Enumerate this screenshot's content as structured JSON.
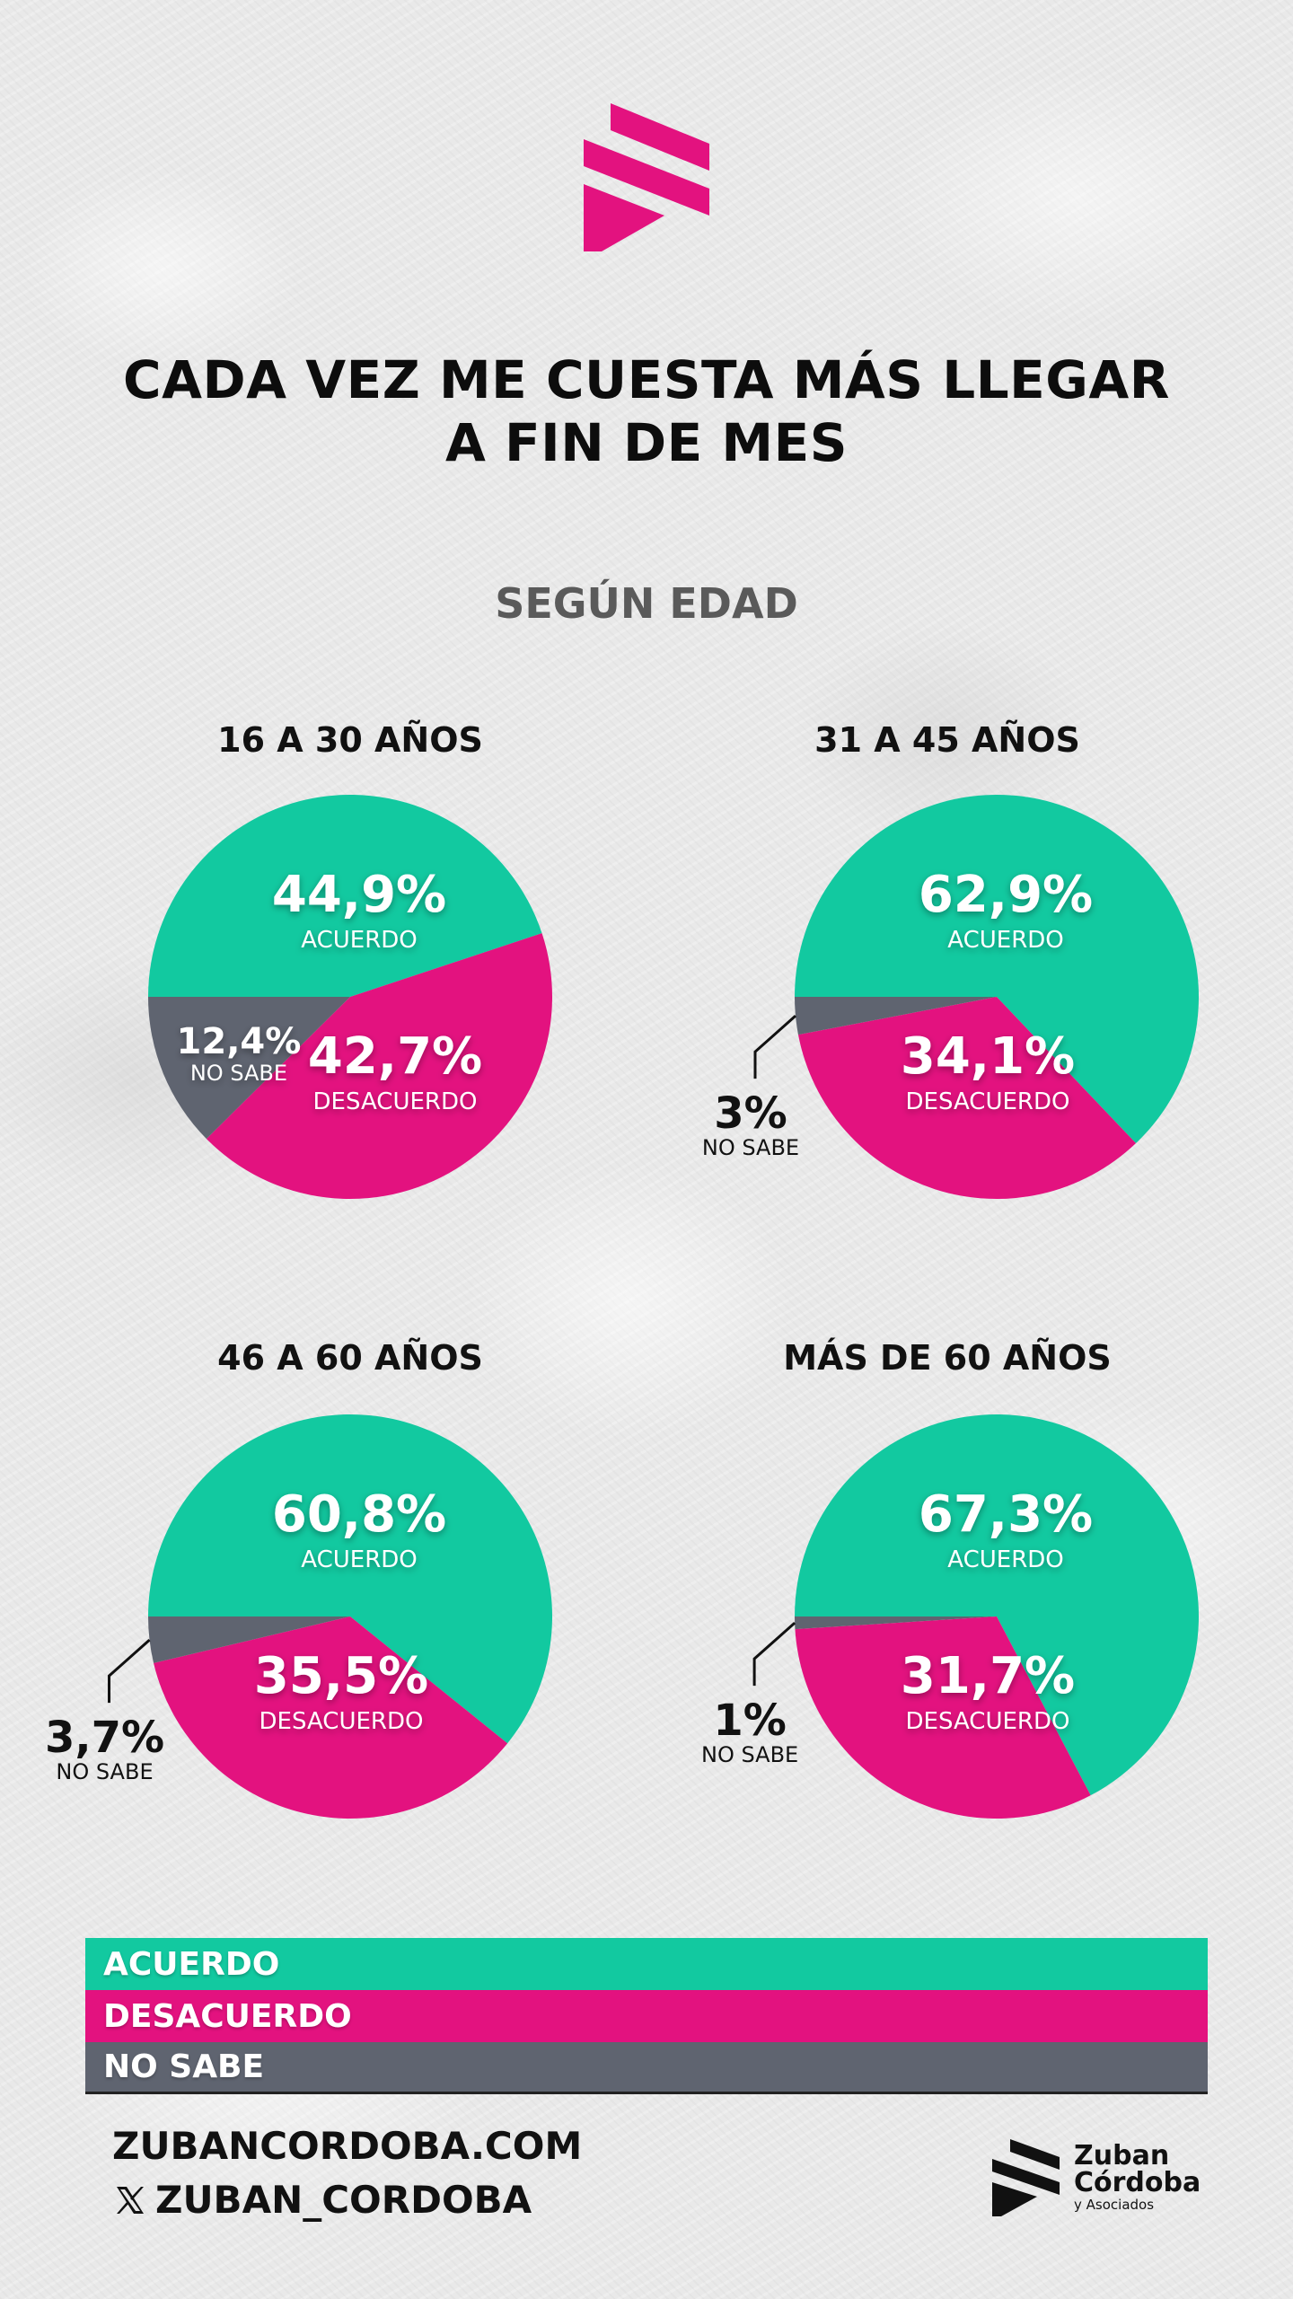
{
  "title_lines": [
    "CADA VEZ ME CUESTA MÁS LLEGAR",
    "A FIN DE MES"
  ],
  "subtitle": "SEGÚN EDAD",
  "colors": {
    "acuerdo": "#12c9a0",
    "desacuerdo": "#e3127f",
    "no_sabe": "#5f6470",
    "brand_pink": "#e3127f"
  },
  "chart_data": [
    {
      "type": "pie",
      "title": "16 A 30 AÑOS",
      "slices": [
        {
          "label": "ACUERDO",
          "value": 44.9,
          "display": "44,9%"
        },
        {
          "label": "DESACUERDO",
          "value": 42.7,
          "display": "42,7%"
        },
        {
          "label": "NO SABE",
          "value": 12.4,
          "display": "12,4%"
        }
      ]
    },
    {
      "type": "pie",
      "title": "31 A 45 AÑOS",
      "slices": [
        {
          "label": "ACUERDO",
          "value": 62.9,
          "display": "62,9%"
        },
        {
          "label": "DESACUERDO",
          "value": 34.1,
          "display": "34,1%"
        },
        {
          "label": "NO SABE",
          "value": 3,
          "display": "3%"
        }
      ]
    },
    {
      "type": "pie",
      "title": "46 A 60 AÑOS",
      "slices": [
        {
          "label": "ACUERDO",
          "value": 60.8,
          "display": "60,8%"
        },
        {
          "label": "DESACUERDO",
          "value": 35.5,
          "display": "35,5%"
        },
        {
          "label": "NO SABE",
          "value": 3.7,
          "display": "3,7%"
        }
      ]
    },
    {
      "type": "pie",
      "title": "MÁS DE 60 AÑOS",
      "slices": [
        {
          "label": "ACUERDO",
          "value": 67.3,
          "display": "67,3%"
        },
        {
          "label": "DESACUERDO",
          "value": 31.7,
          "display": "31,7%"
        },
        {
          "label": "NO SABE",
          "value": 1,
          "display": "1%"
        }
      ]
    }
  ],
  "legend": [
    {
      "label": "ACUERDO",
      "color": "#12c9a0"
    },
    {
      "label": "DESACUERDO",
      "color": "#e3127f"
    },
    {
      "label": "NO SABE",
      "color": "#5f6470"
    }
  ],
  "footer": {
    "website": "ZUBANCORDOBA.COM",
    "x_icon": "x-logo-icon",
    "handle": "ZUBAN_CORDOBA"
  },
  "brand": {
    "line1": "Zuban",
    "line2": "Córdoba",
    "line3": "y Asociados"
  }
}
